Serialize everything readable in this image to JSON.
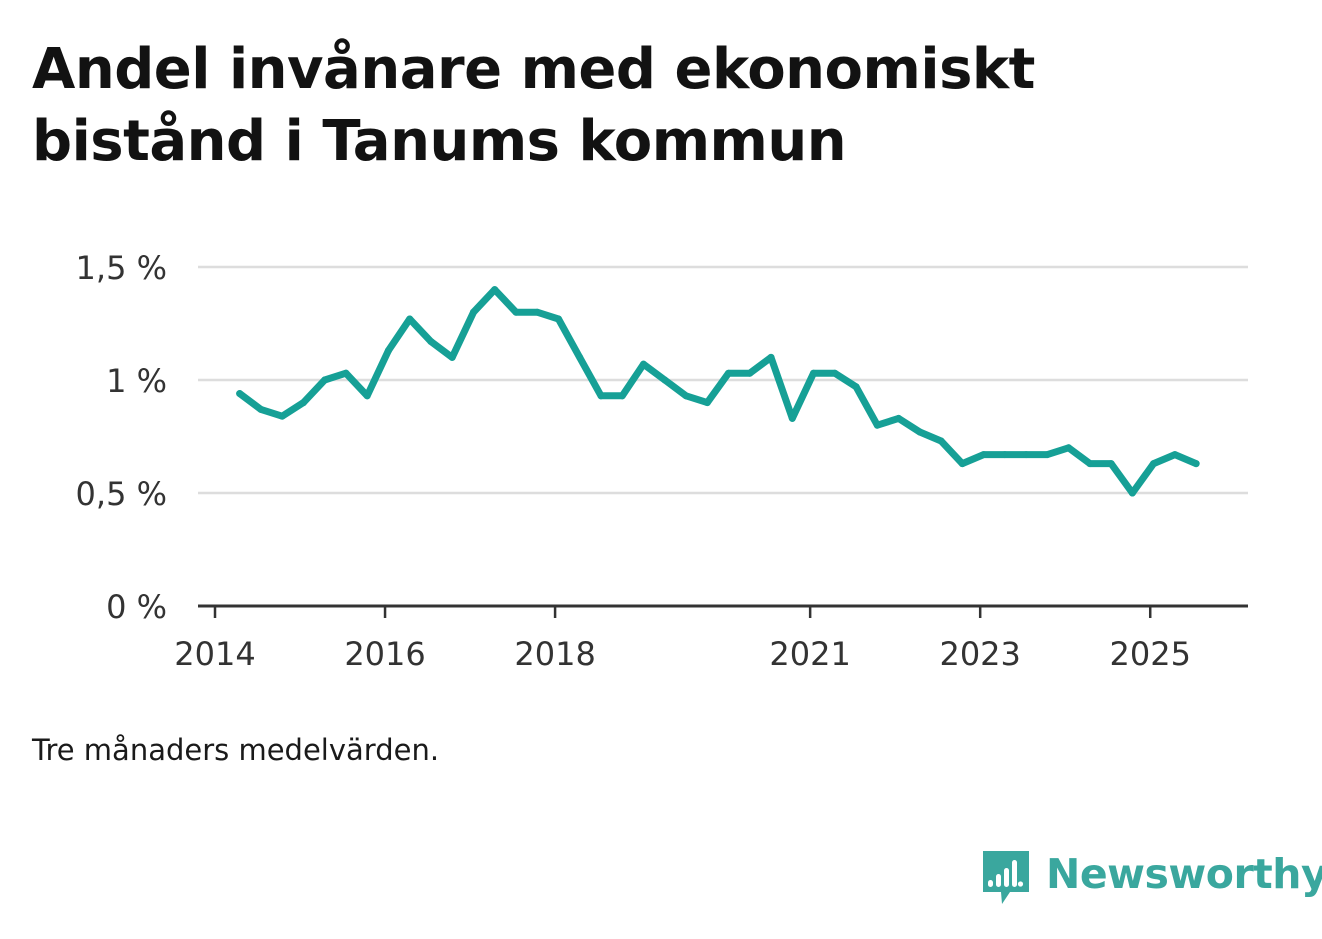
{
  "title": "Andel invånare med ekonomiskt bistånd i Tanums kommun",
  "note": "Tre månaders medelvärden.",
  "brand": {
    "name": "Newsworthy",
    "icon": "newsworthy-logo-icon",
    "color": "#3aa79e"
  },
  "chart_data": {
    "type": "line",
    "title": "Andel invånare med ekonomiskt bistånd i Tanums kommun",
    "xlabel": "",
    "ylabel": "",
    "y_ticks": [
      {
        "value": 0,
        "label": "0 %"
      },
      {
        "value": 0.5,
        "label": "0,5 %"
      },
      {
        "value": 1.0,
        "label": "1 %"
      },
      {
        "value": 1.5,
        "label": "1,5 %"
      }
    ],
    "x_ticks": [
      {
        "value": 2014.0,
        "label": "2014"
      },
      {
        "value": 2016.0,
        "label": "2016"
      },
      {
        "value": 2018.0,
        "label": "2018"
      },
      {
        "value": 2021.0,
        "label": "2021"
      },
      {
        "value": 2023.0,
        "label": "2023"
      },
      {
        "value": 2025.0,
        "label": "2025"
      }
    ],
    "xlim": [
      2013.8,
      2026.15
    ],
    "ylim": [
      0,
      1.5
    ],
    "grid": true,
    "line_color": "#16a096",
    "series": [
      {
        "x": [
          2014.29,
          2014.54,
          2014.79,
          2015.04,
          2015.29,
          2015.54,
          2015.79,
          2016.04,
          2016.29,
          2016.54,
          2016.79,
          2017.04,
          2017.29,
          2017.54,
          2017.79,
          2018.04,
          2018.29,
          2018.54,
          2018.79,
          2019.04,
          2019.29,
          2019.54,
          2019.79,
          2020.04,
          2020.29,
          2020.54,
          2020.79,
          2021.04,
          2021.29,
          2021.54,
          2021.79,
          2022.04,
          2022.29,
          2022.54,
          2022.79,
          2023.04,
          2023.29,
          2023.54,
          2023.79,
          2024.04,
          2024.29,
          2024.54,
          2024.79,
          2025.04,
          2025.29,
          2025.54
        ],
        "y": [
          0.94,
          0.87,
          0.84,
          0.9,
          1.0,
          1.03,
          0.93,
          1.13,
          1.27,
          1.17,
          1.1,
          1.3,
          1.4,
          1.3,
          1.3,
          1.27,
          1.1,
          0.93,
          0.93,
          1.07,
          1.0,
          0.93,
          0.9,
          1.03,
          1.03,
          1.1,
          0.83,
          1.03,
          1.03,
          0.97,
          0.8,
          0.83,
          0.77,
          0.73,
          0.63,
          0.67,
          0.67,
          0.67,
          0.67,
          0.7,
          0.63,
          0.63,
          0.5,
          0.63,
          0.67,
          0.63
        ]
      }
    ]
  }
}
